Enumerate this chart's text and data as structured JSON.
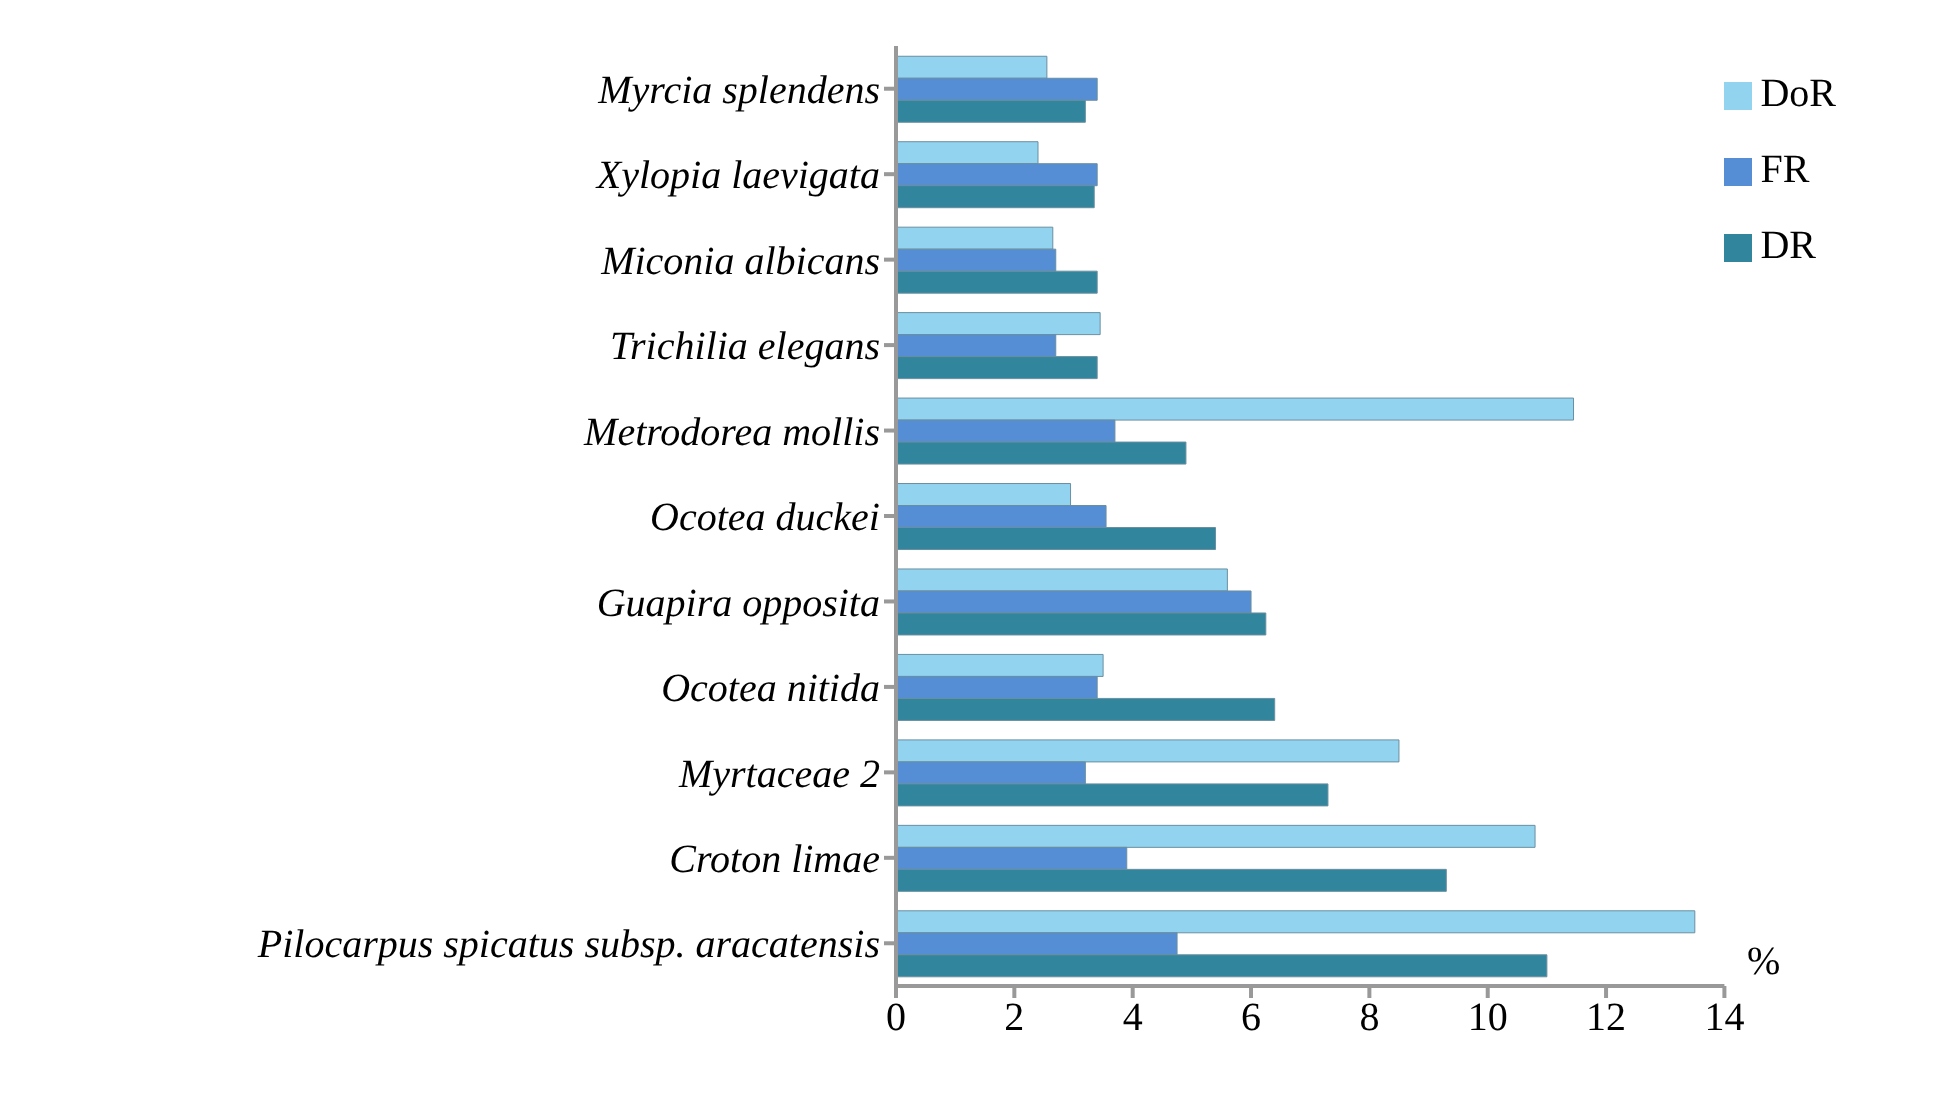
{
  "chart_data": {
    "type": "bar",
    "orientation": "horizontal",
    "xlabel": "%",
    "categories": [
      "Myrcia splendens",
      "Xylopia laevigata",
      "Miconia albicans",
      "Trichilia elegans",
      "Metrodorea mollis",
      "Ocotea duckei",
      "Guapira opposita",
      "Ocotea nitida",
      "Myrtaceae 2",
      "Croton limae",
      "Pilocarpus spicatus subsp. aracatensis"
    ],
    "series": [
      {
        "name": "DoR",
        "color": "#92d3f0",
        "values": [
          2.55,
          2.4,
          2.65,
          3.45,
          11.45,
          2.95,
          5.6,
          3.5,
          8.5,
          10.8,
          13.5
        ]
      },
      {
        "name": "FR",
        "color": "#558ed5",
        "values": [
          3.4,
          3.4,
          2.7,
          2.7,
          3.7,
          3.55,
          6.0,
          3.4,
          3.2,
          3.9,
          4.75
        ]
      },
      {
        "name": "DR",
        "color": "#31859c",
        "values": [
          3.2,
          3.35,
          3.4,
          3.4,
          4.9,
          5.4,
          6.25,
          6.4,
          7.3,
          9.3,
          11.0
        ]
      }
    ],
    "xlim": [
      0,
      14
    ],
    "xticks": [
      0,
      2,
      4,
      6,
      8,
      10,
      12,
      14
    ],
    "grid": false,
    "legend": "top right"
  }
}
